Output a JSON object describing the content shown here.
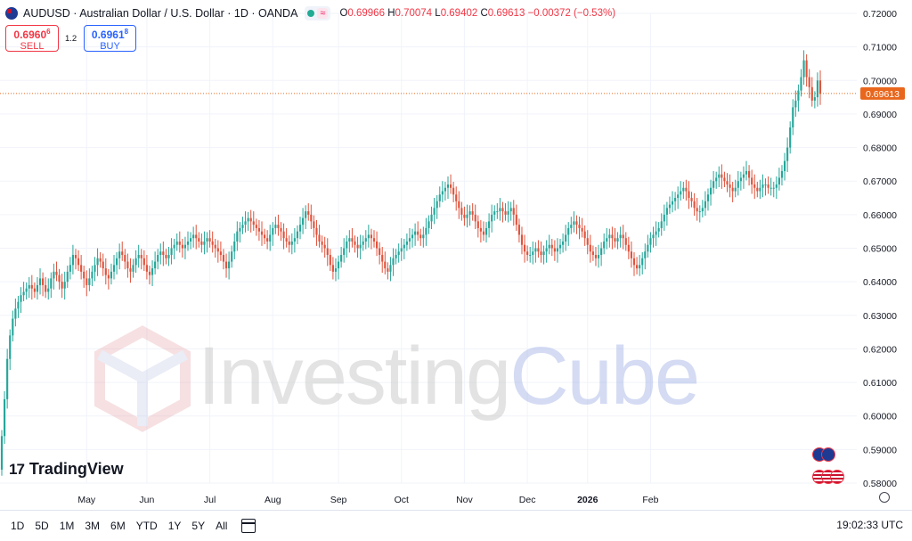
{
  "header": {
    "symbol": "AUDUSD · Australian Dollar / U.S. Dollar · 1D · OANDA",
    "wave_icon": "≈",
    "o_key": "O",
    "o_val": "0.69966",
    "h_key": "H",
    "h_val": "0.70074",
    "l_key": "L",
    "l_val": "0.69402",
    "c_key": "C",
    "c_val": "0.69613",
    "change": "−0.00372 (−0.53%)"
  },
  "trade": {
    "sell_price": "0.6960",
    "sell_price_sup": "6",
    "sell_label": "SELL",
    "spread": "1.2",
    "buy_price": "0.6961",
    "buy_price_sup": "8",
    "buy_label": "BUY"
  },
  "toolbar": {
    "timeframes": [
      "1D",
      "5D",
      "1M",
      "3M",
      "6M",
      "YTD",
      "1Y",
      "5Y",
      "All"
    ],
    "clock": "19:02:33 UTC"
  },
  "branding": {
    "logo": "TradingView",
    "watermark_part1": "Investing",
    "watermark_part2": "Cube"
  },
  "colors": {
    "up": "#26a69a",
    "down": "#e0533d",
    "last_price_label": "#e8671d",
    "grid": "#f0f3fa"
  },
  "icons": [
    "au-flag-icon",
    "green-dot-icon",
    "wave-icon",
    "calendar-range-icon",
    "settings-gear-icon",
    "au-us-flags-icon"
  ],
  "chart_data": {
    "type": "candlestick",
    "last_price": 0.69613,
    "y_ticks": [
      "0.72000",
      "0.71000",
      "0.70000",
      "0.69000",
      "0.68000",
      "0.67000",
      "0.66000",
      "0.65000",
      "0.64000",
      "0.63000",
      "0.62000",
      "0.61000",
      "0.60000",
      "0.59000",
      "0.58000"
    ],
    "ylim": [
      0.58,
      0.72
    ],
    "x_labels": [
      "May",
      "Jun",
      "Jul",
      "Aug",
      "Sep",
      "Oct",
      "Nov",
      "Dec",
      "2026",
      "Feb"
    ],
    "grid": true,
    "closes": [
      0.594,
      0.605,
      0.617,
      0.624,
      0.629,
      0.632,
      0.634,
      0.636,
      0.637,
      0.638,
      0.639,
      0.638,
      0.637,
      0.639,
      0.641,
      0.639,
      0.637,
      0.638,
      0.641,
      0.643,
      0.642,
      0.64,
      0.638,
      0.64,
      0.643,
      0.645,
      0.648,
      0.647,
      0.645,
      0.643,
      0.641,
      0.639,
      0.641,
      0.643,
      0.645,
      0.647,
      0.646,
      0.644,
      0.642,
      0.641,
      0.643,
      0.645,
      0.647,
      0.649,
      0.648,
      0.646,
      0.644,
      0.643,
      0.645,
      0.647,
      0.648,
      0.647,
      0.645,
      0.643,
      0.642,
      0.644,
      0.646,
      0.648,
      0.649,
      0.648,
      0.647,
      0.648,
      0.65,
      0.651,
      0.652,
      0.651,
      0.65,
      0.651,
      0.652,
      0.653,
      0.654,
      0.653,
      0.652,
      0.651,
      0.652,
      0.653,
      0.652,
      0.651,
      0.65,
      0.649,
      0.648,
      0.646,
      0.644,
      0.646,
      0.649,
      0.652,
      0.655,
      0.656,
      0.657,
      0.658,
      0.659,
      0.658,
      0.657,
      0.656,
      0.655,
      0.654,
      0.653,
      0.652,
      0.654,
      0.656,
      0.657,
      0.656,
      0.655,
      0.653,
      0.652,
      0.651,
      0.652,
      0.653,
      0.655,
      0.657,
      0.659,
      0.661,
      0.66,
      0.658,
      0.656,
      0.654,
      0.652,
      0.651,
      0.65,
      0.648,
      0.645,
      0.643,
      0.644,
      0.646,
      0.648,
      0.65,
      0.652,
      0.653,
      0.652,
      0.651,
      0.65,
      0.651,
      0.652,
      0.653,
      0.654,
      0.653,
      0.652,
      0.65,
      0.648,
      0.646,
      0.644,
      0.643,
      0.645,
      0.647,
      0.648,
      0.649,
      0.65,
      0.651,
      0.652,
      0.653,
      0.654,
      0.655,
      0.654,
      0.653,
      0.654,
      0.656,
      0.658,
      0.66,
      0.662,
      0.664,
      0.666,
      0.667,
      0.668,
      0.669,
      0.668,
      0.666,
      0.664,
      0.662,
      0.66,
      0.659,
      0.66,
      0.661,
      0.66,
      0.658,
      0.656,
      0.655,
      0.654,
      0.656,
      0.658,
      0.66,
      0.661,
      0.661,
      0.662,
      0.661,
      0.66,
      0.661,
      0.662,
      0.66,
      0.657,
      0.654,
      0.651,
      0.649,
      0.648,
      0.648,
      0.649,
      0.65,
      0.649,
      0.648,
      0.649,
      0.65,
      0.651,
      0.65,
      0.649,
      0.65,
      0.651,
      0.652,
      0.654,
      0.656,
      0.657,
      0.658,
      0.657,
      0.656,
      0.655,
      0.653,
      0.651,
      0.649,
      0.648,
      0.647,
      0.648,
      0.65,
      0.652,
      0.653,
      0.654,
      0.653,
      0.652,
      0.653,
      0.654,
      0.653,
      0.651,
      0.649,
      0.647,
      0.645,
      0.644,
      0.645,
      0.647,
      0.649,
      0.651,
      0.653,
      0.654,
      0.655,
      0.656,
      0.658,
      0.66,
      0.662,
      0.663,
      0.664,
      0.665,
      0.666,
      0.667,
      0.668,
      0.667,
      0.665,
      0.664,
      0.662,
      0.661,
      0.661,
      0.662,
      0.664,
      0.666,
      0.668,
      0.67,
      0.671,
      0.672,
      0.671,
      0.67,
      0.669,
      0.668,
      0.667,
      0.668,
      0.67,
      0.671,
      0.672,
      0.673,
      0.671,
      0.669,
      0.668,
      0.667,
      0.668,
      0.669,
      0.669,
      0.668,
      0.668,
      0.668,
      0.669,
      0.671,
      0.673,
      0.676,
      0.68,
      0.686,
      0.692,
      0.694,
      0.697,
      0.701,
      0.706,
      0.701,
      0.698,
      0.694,
      0.695,
      0.7,
      0.696
    ]
  }
}
